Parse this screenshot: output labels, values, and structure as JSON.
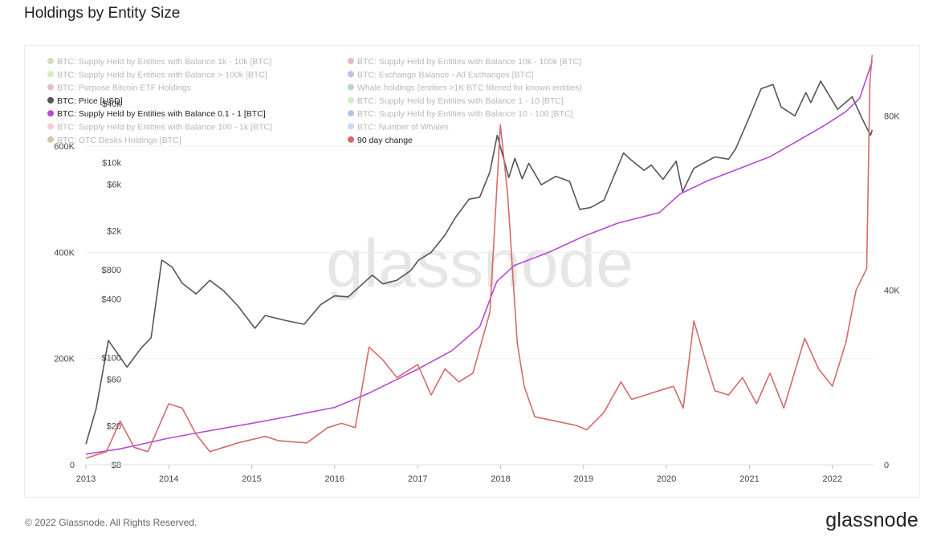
{
  "header": {
    "title": "Holdings by Entity Size"
  },
  "footer": {
    "copyright": "© 2022 Glassnode. All Rights Reserved.",
    "logo": "glassnode"
  },
  "watermark": "glassnode",
  "chart_data": {
    "type": "line",
    "title": "Holdings by Entity Size",
    "x_ticks": [
      "2013",
      "2014",
      "2015",
      "2016",
      "2017",
      "2018",
      "2019",
      "2020",
      "2021",
      "2022"
    ],
    "xlim": [
      "2013-01-01",
      "2022-07-01"
    ],
    "left_axis": {
      "ticks": [
        {
          "label": "0",
          "value": 0
        },
        {
          "label": "200K",
          "value": 200000
        },
        {
          "label": "400K",
          "value": 400000
        },
        {
          "label": "600K",
          "value": 600000
        }
      ],
      "ylim": [
        0,
        780000
      ]
    },
    "price_axis": {
      "scale": "log",
      "ticks": [
        {
          "label": "$8",
          "value": 8
        },
        {
          "label": "$20",
          "value": 20
        },
        {
          "label": "$60",
          "value": 60
        },
        {
          "label": "$100",
          "value": 100
        },
        {
          "label": "$400",
          "value": 400
        },
        {
          "label": "$800",
          "value": 800
        },
        {
          "label": "$2k",
          "value": 2000
        },
        {
          "label": "$6k",
          "value": 6000
        },
        {
          "label": "$10k",
          "value": 10000
        },
        {
          "label": "$40k",
          "value": 40000
        }
      ],
      "ylim": [
        8,
        140000
      ]
    },
    "right_axis": {
      "ticks": [
        {
          "label": "0",
          "value": 0
        },
        {
          "label": "40K",
          "value": 40000
        },
        {
          "label": "80K",
          "value": 80000
        }
      ],
      "ylim": [
        0,
        95000
      ]
    },
    "legend": {
      "placement": "top-left",
      "items": [
        {
          "label": "BTC: Supply Held by Entities with Balance 1k - 10k [BTC]",
          "color": "#8a9a3a",
          "faded": true
        },
        {
          "label": "BTC: Supply Held by Entities with Balance 10k - 100k [BTC]",
          "color": "#b03a8a",
          "faded": true
        },
        {
          "label": "BTC: Supply Held by Entities with Balance > 100k [BTC]",
          "color": "#7ccf4a",
          "faded": true
        },
        {
          "label": "BTC: Exchange Balance - All Exchanges [BTC]",
          "color": "#4a4ac8",
          "faded": true
        },
        {
          "label": "BTC: Purpose Bitcoin ETF Holdings",
          "color": "#b04a5a",
          "faded": true
        },
        {
          "label": "Whale holdings (entities >1K BTC filtered for known entities)",
          "color": "#2a8a9a",
          "faded": true
        },
        {
          "label": "BTC: Price [USD]",
          "color": "#555555",
          "faded": false
        },
        {
          "label": "BTC: Supply Held by Entities with Balance 1 - 10 [BTC]",
          "color": "#6ad84a",
          "faded": true
        },
        {
          "label": "BTC: Supply Held by Entities with Balance 0.1 - 1 [BTC]",
          "color": "#b24cd6",
          "faded": false
        },
        {
          "label": "BTC: Supply Held by Entities with Balance 10 - 100 [BTC]",
          "color": "#2a4ad0",
          "faded": true
        },
        {
          "label": "BTC: Supply Held by Entities with Balance 100 - 1k [BTC]",
          "color": "#d07a8a",
          "faded": true
        },
        {
          "label": "BTC: Number of Whales",
          "color": "#4aa0d8",
          "faded": true
        },
        {
          "label": "BTC: OTC Desks Holdings [BTC]",
          "color": "#7a5a2a",
          "faded": true
        },
        {
          "label": "90 day change",
          "color": "#d46a6a",
          "faded": false
        }
      ]
    },
    "series": [
      {
        "name": "BTC: Price [USD]",
        "axis": "price",
        "color": "#555555",
        "points": [
          [
            "2013-01-01",
            13
          ],
          [
            "2013-02-15",
            30
          ],
          [
            "2013-04-10",
            150
          ],
          [
            "2013-05-15",
            115
          ],
          [
            "2013-07-01",
            80
          ],
          [
            "2013-09-01",
            125
          ],
          [
            "2013-10-15",
            160
          ],
          [
            "2013-12-01",
            1000
          ],
          [
            "2014-01-15",
            850
          ],
          [
            "2014-03-01",
            580
          ],
          [
            "2014-05-01",
            450
          ],
          [
            "2014-07-01",
            620
          ],
          [
            "2014-09-01",
            480
          ],
          [
            "2014-11-01",
            340
          ],
          [
            "2015-01-15",
            200
          ],
          [
            "2015-03-01",
            270
          ],
          [
            "2015-06-01",
            240
          ],
          [
            "2015-08-20",
            220
          ],
          [
            "2015-11-01",
            350
          ],
          [
            "2016-01-01",
            430
          ],
          [
            "2016-03-01",
            420
          ],
          [
            "2016-06-15",
            700
          ],
          [
            "2016-08-01",
            570
          ],
          [
            "2016-10-01",
            620
          ],
          [
            "2016-12-01",
            780
          ],
          [
            "2017-01-05",
            1000
          ],
          [
            "2017-03-01",
            1200
          ],
          [
            "2017-05-01",
            1800
          ],
          [
            "2017-06-15",
            2700
          ],
          [
            "2017-08-15",
            4200
          ],
          [
            "2017-10-01",
            4400
          ],
          [
            "2017-11-15",
            8000
          ],
          [
            "2017-12-17",
            19000
          ],
          [
            "2018-02-06",
            7000
          ],
          [
            "2018-03-05",
            11000
          ],
          [
            "2018-04-06",
            6800
          ],
          [
            "2018-05-05",
            9800
          ],
          [
            "2018-06-29",
            5900
          ],
          [
            "2018-09-01",
            7200
          ],
          [
            "2018-11-01",
            6400
          ],
          [
            "2018-12-15",
            3300
          ],
          [
            "2019-02-01",
            3450
          ],
          [
            "2019-04-01",
            4100
          ],
          [
            "2019-06-26",
            12500
          ],
          [
            "2019-08-01",
            10500
          ],
          [
            "2019-09-25",
            8300
          ],
          [
            "2019-10-26",
            9400
          ],
          [
            "2019-12-17",
            6700
          ],
          [
            "2020-02-13",
            10300
          ],
          [
            "2020-03-12",
            5000
          ],
          [
            "2020-05-01",
            8700
          ],
          [
            "2020-08-01",
            11400
          ],
          [
            "2020-10-01",
            10800
          ],
          [
            "2020-11-01",
            13800
          ],
          [
            "2020-12-31",
            29000
          ],
          [
            "2021-02-21",
            57000
          ],
          [
            "2021-04-14",
            63000
          ],
          [
            "2021-05-20",
            37000
          ],
          [
            "2021-07-20",
            30000
          ],
          [
            "2021-09-06",
            52000
          ],
          [
            "2021-09-28",
            41000
          ],
          [
            "2021-11-10",
            68000
          ],
          [
            "2022-01-24",
            35000
          ],
          [
            "2022-03-29",
            47000
          ],
          [
            "2022-05-12",
            28000
          ],
          [
            "2022-06-18",
            19000
          ],
          [
            "2022-06-25",
            21500
          ]
        ]
      },
      {
        "name": "BTC: Supply Held by Entities with Balance 0.1 - 1 [BTC]",
        "axis": "left",
        "color": "#b24cd6",
        "points": [
          [
            "2013-01-01",
            20000
          ],
          [
            "2013-06-01",
            30000
          ],
          [
            "2014-01-01",
            50000
          ],
          [
            "2014-06-01",
            62000
          ],
          [
            "2015-01-01",
            78000
          ],
          [
            "2015-06-01",
            90000
          ],
          [
            "2016-01-01",
            108000
          ],
          [
            "2016-06-01",
            135000
          ],
          [
            "2017-01-01",
            180000
          ],
          [
            "2017-06-01",
            215000
          ],
          [
            "2017-10-01",
            260000
          ],
          [
            "2017-12-15",
            345000
          ],
          [
            "2018-03-01",
            375000
          ],
          [
            "2018-08-01",
            400000
          ],
          [
            "2019-01-01",
            430000
          ],
          [
            "2019-06-01",
            455000
          ],
          [
            "2019-12-01",
            475000
          ],
          [
            "2020-03-01",
            510000
          ],
          [
            "2020-07-01",
            535000
          ],
          [
            "2020-12-01",
            560000
          ],
          [
            "2021-04-01",
            580000
          ],
          [
            "2021-08-01",
            610000
          ],
          [
            "2021-12-01",
            640000
          ],
          [
            "2022-03-01",
            665000
          ],
          [
            "2022-05-01",
            690000
          ],
          [
            "2022-06-25",
            760000
          ]
        ]
      },
      {
        "name": "90 day change",
        "axis": "right",
        "color": "#d46a6a",
        "points": [
          [
            "2013-01-01",
            1500
          ],
          [
            "2013-04-01",
            3000
          ],
          [
            "2013-06-01",
            10000
          ],
          [
            "2013-08-01",
            4000
          ],
          [
            "2013-10-01",
            3000
          ],
          [
            "2014-01-01",
            14000
          ],
          [
            "2014-03-01",
            13000
          ],
          [
            "2014-05-01",
            7000
          ],
          [
            "2014-07-01",
            3000
          ],
          [
            "2014-11-01",
            5000
          ],
          [
            "2015-03-01",
            6500
          ],
          [
            "2015-05-01",
            5500
          ],
          [
            "2015-09-01",
            5000
          ],
          [
            "2015-12-01",
            8500
          ],
          [
            "2016-02-01",
            9500
          ],
          [
            "2016-04-01",
            8500
          ],
          [
            "2016-06-01",
            27000
          ],
          [
            "2016-08-01",
            24000
          ],
          [
            "2016-10-01",
            20000
          ],
          [
            "2017-01-01",
            23000
          ],
          [
            "2017-03-01",
            16000
          ],
          [
            "2017-05-01",
            22000
          ],
          [
            "2017-07-01",
            19000
          ],
          [
            "2017-09-01",
            21000
          ],
          [
            "2017-11-15",
            35000
          ],
          [
            "2017-12-31",
            78000
          ],
          [
            "2018-02-01",
            62000
          ],
          [
            "2018-03-15",
            28000
          ],
          [
            "2018-04-15",
            18000
          ],
          [
            "2018-06-01",
            11000
          ],
          [
            "2018-09-01",
            10000
          ],
          [
            "2018-12-01",
            9000
          ],
          [
            "2019-01-15",
            8000
          ],
          [
            "2019-04-01",
            12000
          ],
          [
            "2019-06-15",
            19000
          ],
          [
            "2019-08-01",
            15000
          ],
          [
            "2019-10-01",
            16000
          ],
          [
            "2019-12-01",
            17000
          ],
          [
            "2020-02-01",
            18000
          ],
          [
            "2020-03-15",
            13000
          ],
          [
            "2020-05-01",
            33000
          ],
          [
            "2020-06-15",
            25000
          ],
          [
            "2020-08-01",
            17000
          ],
          [
            "2020-10-01",
            16000
          ],
          [
            "2020-12-01",
            20000
          ],
          [
            "2021-02-01",
            14000
          ],
          [
            "2021-04-01",
            21000
          ],
          [
            "2021-06-01",
            13000
          ],
          [
            "2021-09-01",
            29000
          ],
          [
            "2021-11-01",
            22000
          ],
          [
            "2022-01-01",
            18000
          ],
          [
            "2022-03-01",
            28000
          ],
          [
            "2022-04-15",
            40000
          ],
          [
            "2022-06-01",
            45000
          ],
          [
            "2022-06-15",
            88000
          ],
          [
            "2022-06-25",
            94000
          ]
        ]
      }
    ]
  }
}
